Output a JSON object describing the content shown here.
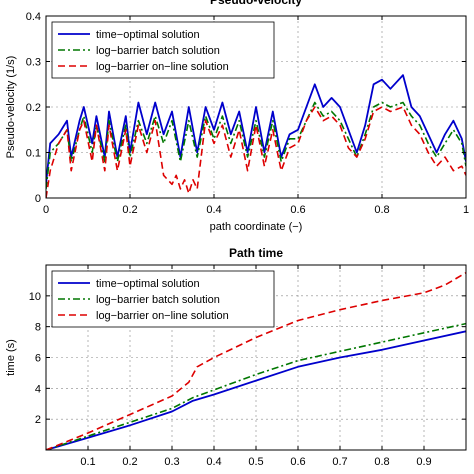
{
  "chart_data": [
    {
      "type": "line",
      "title": "Pseudo-velocity",
      "xlabel": "path coordinate (−)",
      "ylabel": "Pseudo-velocity (1/s)",
      "xlim": [
        0,
        1
      ],
      "ylim": [
        0,
        0.4
      ],
      "xticks": [
        0,
        0.2,
        0.4,
        0.6,
        0.8,
        1
      ],
      "xtick_labels": [
        "0",
        "0.2",
        "0.4",
        "0.6",
        "0.8",
        "1"
      ],
      "yticks": [
        0,
        0.1,
        0.2,
        0.3,
        0.4
      ],
      "ytick_labels": [
        "0",
        "0.1",
        "0.2",
        "0.3",
        "0.4"
      ],
      "grid": true,
      "legend": "top-left",
      "series": [
        {
          "name": "time−optimal solution",
          "color": "#0000cc",
          "style": "solid",
          "x": [
            0,
            0.01,
            0.03,
            0.05,
            0.06,
            0.08,
            0.09,
            0.11,
            0.12,
            0.14,
            0.15,
            0.17,
            0.19,
            0.2,
            0.22,
            0.24,
            0.26,
            0.28,
            0.3,
            0.32,
            0.34,
            0.36,
            0.38,
            0.4,
            0.42,
            0.44,
            0.46,
            0.48,
            0.5,
            0.52,
            0.54,
            0.56,
            0.58,
            0.6,
            0.62,
            0.64,
            0.66,
            0.68,
            0.7,
            0.72,
            0.74,
            0.76,
            0.78,
            0.8,
            0.82,
            0.85,
            0.87,
            0.89,
            0.91,
            0.93,
            0.95,
            0.97,
            0.99,
            1.0
          ],
          "y": [
            0.03,
            0.12,
            0.14,
            0.17,
            0.09,
            0.17,
            0.2,
            0.12,
            0.18,
            0.09,
            0.19,
            0.09,
            0.18,
            0.1,
            0.21,
            0.14,
            0.21,
            0.14,
            0.19,
            0.09,
            0.2,
            0.1,
            0.2,
            0.15,
            0.21,
            0.14,
            0.19,
            0.1,
            0.2,
            0.1,
            0.19,
            0.09,
            0.14,
            0.15,
            0.2,
            0.25,
            0.2,
            0.22,
            0.2,
            0.15,
            0.1,
            0.16,
            0.25,
            0.26,
            0.24,
            0.27,
            0.2,
            0.18,
            0.14,
            0.1,
            0.14,
            0.17,
            0.13,
            0.08
          ]
        },
        {
          "name": "log−barrier batch solution",
          "color": "#007700",
          "style": "dashdot",
          "x": [
            0,
            0.01,
            0.03,
            0.05,
            0.06,
            0.08,
            0.09,
            0.11,
            0.12,
            0.14,
            0.15,
            0.17,
            0.19,
            0.2,
            0.22,
            0.24,
            0.26,
            0.28,
            0.3,
            0.32,
            0.34,
            0.36,
            0.38,
            0.4,
            0.42,
            0.44,
            0.46,
            0.48,
            0.5,
            0.52,
            0.54,
            0.56,
            0.58,
            0.6,
            0.62,
            0.64,
            0.66,
            0.68,
            0.7,
            0.72,
            0.74,
            0.76,
            0.78,
            0.8,
            0.82,
            0.85,
            0.87,
            0.89,
            0.91,
            0.93,
            0.95,
            0.97,
            0.99,
            1.0
          ],
          "y": [
            0.02,
            0.1,
            0.12,
            0.15,
            0.08,
            0.15,
            0.18,
            0.1,
            0.16,
            0.08,
            0.17,
            0.08,
            0.16,
            0.09,
            0.17,
            0.12,
            0.18,
            0.12,
            0.17,
            0.08,
            0.17,
            0.09,
            0.18,
            0.13,
            0.18,
            0.12,
            0.17,
            0.09,
            0.17,
            0.09,
            0.17,
            0.08,
            0.13,
            0.13,
            0.17,
            0.21,
            0.18,
            0.19,
            0.17,
            0.13,
            0.09,
            0.14,
            0.2,
            0.21,
            0.2,
            0.21,
            0.18,
            0.16,
            0.12,
            0.09,
            0.12,
            0.15,
            0.12,
            0.07
          ]
        },
        {
          "name": "log−barrier on−line solution",
          "color": "#dd0000",
          "style": "dashed",
          "x": [
            0,
            0.01,
            0.02,
            0.03,
            0.05,
            0.06,
            0.08,
            0.09,
            0.11,
            0.12,
            0.14,
            0.15,
            0.17,
            0.19,
            0.2,
            0.22,
            0.24,
            0.26,
            0.28,
            0.29,
            0.3,
            0.31,
            0.32,
            0.33,
            0.34,
            0.35,
            0.36,
            0.38,
            0.4,
            0.42,
            0.44,
            0.46,
            0.48,
            0.5,
            0.52,
            0.54,
            0.56,
            0.58,
            0.6,
            0.62,
            0.64,
            0.66,
            0.68,
            0.7,
            0.72,
            0.74,
            0.76,
            0.78,
            0.8,
            0.82,
            0.85,
            0.87,
            0.89,
            0.91,
            0.93,
            0.95,
            0.97,
            0.99,
            1.0
          ],
          "y": [
            0.0,
            0.06,
            0.09,
            0.12,
            0.15,
            0.06,
            0.15,
            0.17,
            0.08,
            0.16,
            0.06,
            0.16,
            0.06,
            0.15,
            0.07,
            0.16,
            0.1,
            0.17,
            0.05,
            0.04,
            0.03,
            0.05,
            0.02,
            0.04,
            0.01,
            0.04,
            0.02,
            0.17,
            0.12,
            0.16,
            0.09,
            0.15,
            0.06,
            0.16,
            0.07,
            0.15,
            0.06,
            0.11,
            0.12,
            0.17,
            0.2,
            0.17,
            0.18,
            0.16,
            0.11,
            0.09,
            0.13,
            0.19,
            0.2,
            0.19,
            0.2,
            0.16,
            0.14,
            0.1,
            0.07,
            0.09,
            0.06,
            0.07,
            0.05
          ]
        }
      ]
    },
    {
      "type": "line",
      "title": "Path time",
      "xlabel": "",
      "ylabel": "time (s)",
      "xlim": [
        0,
        1
      ],
      "ylim": [
        0,
        12
      ],
      "xticks": [
        0.1,
        0.2,
        0.3,
        0.4,
        0.5,
        0.6,
        0.7,
        0.8,
        0.9
      ],
      "xtick_labels": [
        "0.1",
        "0.2",
        "0.3",
        "0.4",
        "0.5",
        "0.6",
        "0.7",
        "0.8",
        "0.9"
      ],
      "yticks": [
        2,
        4,
        6,
        8,
        10
      ],
      "ytick_labels": [
        "2",
        "4",
        "6",
        "8",
        "10"
      ],
      "grid": true,
      "legend": "top-left",
      "series": [
        {
          "name": "time−optimal solution",
          "color": "#0000cc",
          "style": "solid",
          "x": [
            0,
            0.1,
            0.2,
            0.3,
            0.35,
            0.4,
            0.5,
            0.6,
            0.7,
            0.8,
            0.9,
            1.0
          ],
          "y": [
            0,
            0.8,
            1.6,
            2.5,
            3.2,
            3.6,
            4.5,
            5.4,
            6.0,
            6.5,
            7.1,
            7.7
          ]
        },
        {
          "name": "log−barrier batch solution",
          "color": "#007700",
          "style": "dashdot",
          "x": [
            0,
            0.1,
            0.2,
            0.3,
            0.35,
            0.4,
            0.5,
            0.6,
            0.7,
            0.8,
            0.9,
            1.0
          ],
          "y": [
            0,
            0.9,
            1.8,
            2.7,
            3.4,
            3.9,
            4.9,
            5.8,
            6.4,
            7.0,
            7.6,
            8.2
          ]
        },
        {
          "name": "log−barrier on−line solution",
          "color": "#dd0000",
          "style": "dashed",
          "x": [
            0,
            0.1,
            0.2,
            0.3,
            0.34,
            0.36,
            0.4,
            0.5,
            0.6,
            0.7,
            0.8,
            0.9,
            0.95,
            1.0
          ],
          "y": [
            0,
            1.1,
            2.3,
            3.5,
            4.4,
            5.4,
            6.0,
            7.3,
            8.4,
            9.1,
            9.7,
            10.2,
            10.7,
            11.5
          ]
        }
      ]
    }
  ]
}
